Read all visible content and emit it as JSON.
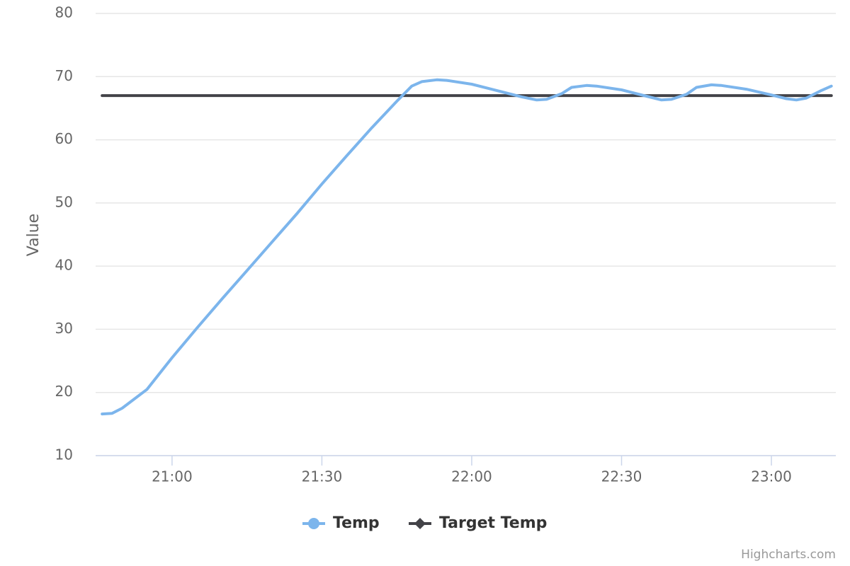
{
  "chart_data": {
    "type": "line",
    "y_axis_label": "Value",
    "credits": "Highcharts.com",
    "x": [
      1246,
      1248,
      1250,
      1255,
      1260,
      1265,
      1270,
      1275,
      1280,
      1285,
      1290,
      1295,
      1300,
      1305,
      1308,
      1310,
      1313,
      1315,
      1320,
      1325,
      1330,
      1333,
      1335,
      1338,
      1340,
      1343,
      1345,
      1350,
      1355,
      1358,
      1360,
      1363,
      1365,
      1368,
      1370,
      1375,
      1380,
      1383,
      1385,
      1387,
      1390,
      1392
    ],
    "series": [
      {
        "name": "Temp",
        "color": "#7cb5ec",
        "marker": "circle",
        "values": [
          16.6,
          16.7,
          17.5,
          20.5,
          25.5,
          30.2,
          34.8,
          39.3,
          43.8,
          48.3,
          53.0,
          57.5,
          61.9,
          66.1,
          68.5,
          69.2,
          69.5,
          69.4,
          68.8,
          67.8,
          66.8,
          66.3,
          66.4,
          67.3,
          68.3,
          68.6,
          68.5,
          67.9,
          66.9,
          66.3,
          66.4,
          67.2,
          68.3,
          68.7,
          68.6,
          68.0,
          67.1,
          66.5,
          66.3,
          66.6,
          67.8,
          68.5
        ]
      },
      {
        "name": "Target Temp",
        "color": "#434348",
        "marker": "diamond",
        "values": [
          67,
          67,
          67,
          67,
          67,
          67,
          67,
          67,
          67,
          67,
          67,
          67,
          67,
          67,
          67,
          67,
          67,
          67,
          67,
          67,
          67,
          67,
          67,
          67,
          67,
          67,
          67,
          67,
          67,
          67,
          67,
          67,
          67,
          67,
          67,
          67,
          67,
          67,
          67,
          67,
          67,
          67
        ]
      }
    ],
    "xlim": [
      1244.7,
      1392.9
    ],
    "xticks": [
      {
        "value": 1260,
        "label": "21:00"
      },
      {
        "value": 1290,
        "label": "21:30"
      },
      {
        "value": 1320,
        "label": "22:00"
      },
      {
        "value": 1350,
        "label": "22:30"
      },
      {
        "value": 1380,
        "label": "23:00"
      }
    ],
    "ylim": [
      10,
      80
    ],
    "yticks": [
      10,
      20,
      30,
      40,
      50,
      60,
      70,
      80
    ],
    "grid": true,
    "legend": "bottom"
  }
}
